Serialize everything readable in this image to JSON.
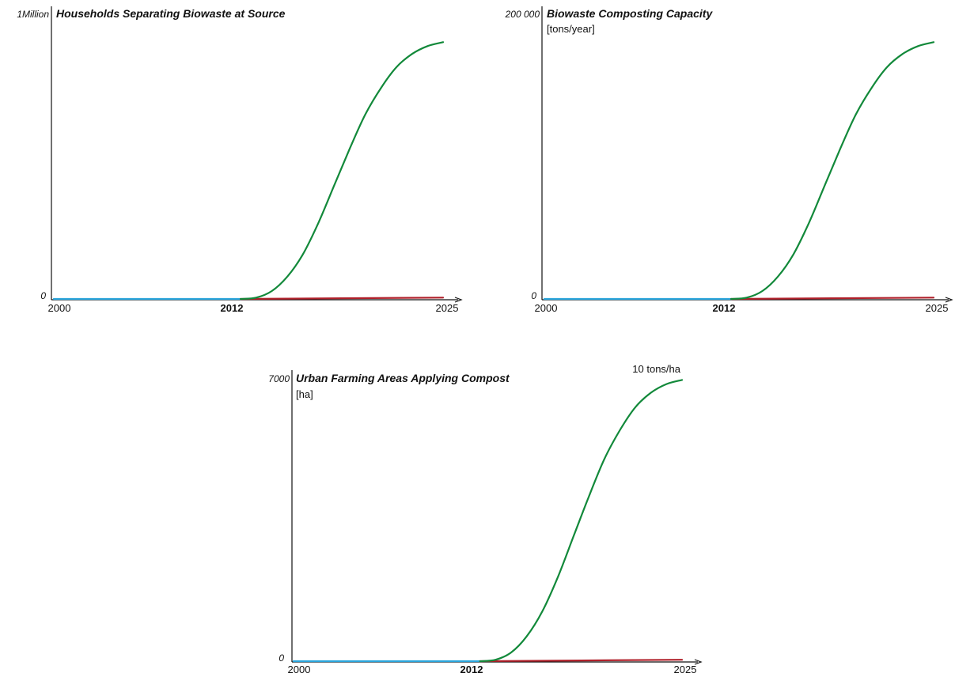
{
  "colors": {
    "baseline": "#2aa5dc",
    "business_as_usual": "#b0202a",
    "scenario": "#12893a",
    "axis": "#111111"
  },
  "chart_data": [
    {
      "type": "line",
      "title": "Households Separating Biowaste at Source",
      "unit": "",
      "y_top_label": "1Million",
      "y_bottom_label": "0",
      "ylim": [
        0,
        1000000
      ],
      "x_tick_labels": [
        "2000",
        "2012",
        "2025"
      ],
      "x_bold_tick": "2012",
      "annotation": "",
      "series": [
        {
          "x": [
            2000,
            2012
          ],
          "y": [
            0,
            0
          ]
        },
        {
          "x": [
            2012,
            2025
          ],
          "y": [
            0,
            5000
          ]
        },
        {
          "x": [
            2012,
            2013,
            2014,
            2015,
            2016,
            2017,
            2018,
            2019,
            2020,
            2021,
            2022,
            2023,
            2024,
            2025
          ],
          "y": [
            0,
            5000,
            30000,
            85000,
            170000,
            290000,
            430000,
            570000,
            700000,
            800000,
            880000,
            930000,
            960000,
            975000
          ]
        }
      ]
    },
    {
      "type": "line",
      "title": "Biowaste Composting Capacity",
      "unit": "[tons/year]",
      "y_top_label": "200 000",
      "y_bottom_label": "0",
      "ylim": [
        0,
        200000
      ],
      "x_tick_labels": [
        "2000",
        "2012",
        "2025"
      ],
      "x_bold_tick": "2012",
      "annotation": "",
      "series": [
        {
          "x": [
            2000,
            2012
          ],
          "y": [
            0,
            0
          ]
        },
        {
          "x": [
            2012,
            2025
          ],
          "y": [
            0,
            1000
          ]
        },
        {
          "x": [
            2012,
            2013,
            2014,
            2015,
            2016,
            2017,
            2018,
            2019,
            2020,
            2021,
            2022,
            2023,
            2024,
            2025
          ],
          "y": [
            0,
            1000,
            6000,
            17000,
            34000,
            58000,
            86000,
            114000,
            140000,
            160000,
            176000,
            186000,
            192000,
            195000
          ]
        }
      ]
    },
    {
      "type": "line",
      "title": "Urban Farming Areas Applying Compost",
      "unit": "[ha]",
      "y_top_label": "7000",
      "y_bottom_label": "0",
      "ylim": [
        0,
        7000
      ],
      "x_tick_labels": [
        "2000",
        "2012",
        "2025"
      ],
      "x_bold_tick": "2012",
      "annotation": "10 tons/ha",
      "series": [
        {
          "x": [
            2000,
            2012
          ],
          "y": [
            0,
            0
          ]
        },
        {
          "x": [
            2012,
            2025
          ],
          "y": [
            0,
            35
          ]
        },
        {
          "x": [
            2012,
            2013,
            2014,
            2015,
            2016,
            2017,
            2018,
            2019,
            2020,
            2021,
            2022,
            2023,
            2024,
            2025
          ],
          "y": [
            0,
            35,
            210,
            600,
            1200,
            2030,
            3010,
            3990,
            4900,
            5600,
            6160,
            6510,
            6720,
            6820
          ]
        }
      ]
    }
  ]
}
